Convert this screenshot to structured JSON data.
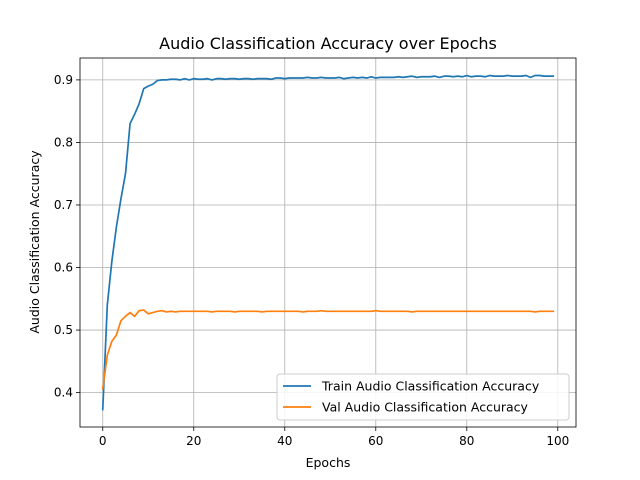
{
  "chart_data": {
    "type": "line",
    "title": "Audio Classification Accuracy over Epochs",
    "xlabel": "Epochs",
    "ylabel": "Audio Classification Accuracy",
    "xlim": [
      -5,
      104
    ],
    "ylim": [
      0.345,
      0.935
    ],
    "xticks": [
      0,
      20,
      40,
      60,
      80,
      100
    ],
    "yticks": [
      0.4,
      0.5,
      0.6,
      0.7,
      0.8,
      0.9
    ],
    "grid": true,
    "legend_position": "lower-right",
    "x": [
      0,
      1,
      2,
      3,
      4,
      5,
      6,
      7,
      8,
      9,
      10,
      11,
      12,
      13,
      14,
      15,
      16,
      17,
      18,
      19,
      20,
      21,
      22,
      23,
      24,
      25,
      26,
      27,
      28,
      29,
      30,
      31,
      32,
      33,
      34,
      35,
      36,
      37,
      38,
      39,
      40,
      41,
      42,
      43,
      44,
      45,
      46,
      47,
      48,
      49,
      50,
      51,
      52,
      53,
      54,
      55,
      56,
      57,
      58,
      59,
      60,
      61,
      62,
      63,
      64,
      65,
      66,
      67,
      68,
      69,
      70,
      71,
      72,
      73,
      74,
      75,
      76,
      77,
      78,
      79,
      80,
      81,
      82,
      83,
      84,
      85,
      86,
      87,
      88,
      89,
      90,
      91,
      92,
      93,
      94,
      95,
      96,
      97,
      98,
      99
    ],
    "series": [
      {
        "name": "Train Audio Classification Accuracy",
        "color": "#1f77b4",
        "values": [
          0.373,
          0.54,
          0.61,
          0.665,
          0.71,
          0.75,
          0.83,
          0.845,
          0.862,
          0.886,
          0.89,
          0.893,
          0.899,
          0.9,
          0.9,
          0.901,
          0.901,
          0.9,
          0.902,
          0.9,
          0.902,
          0.901,
          0.901,
          0.902,
          0.9,
          0.902,
          0.902,
          0.901,
          0.902,
          0.902,
          0.901,
          0.902,
          0.902,
          0.901,
          0.902,
          0.902,
          0.902,
          0.901,
          0.903,
          0.903,
          0.902,
          0.903,
          0.903,
          0.903,
          0.903,
          0.904,
          0.903,
          0.903,
          0.904,
          0.903,
          0.903,
          0.903,
          0.904,
          0.902,
          0.903,
          0.904,
          0.903,
          0.904,
          0.903,
          0.905,
          0.903,
          0.904,
          0.904,
          0.904,
          0.904,
          0.905,
          0.904,
          0.905,
          0.906,
          0.904,
          0.905,
          0.905,
          0.905,
          0.906,
          0.904,
          0.906,
          0.906,
          0.905,
          0.906,
          0.905,
          0.907,
          0.905,
          0.906,
          0.906,
          0.905,
          0.907,
          0.906,
          0.906,
          0.906,
          0.907,
          0.906,
          0.906,
          0.906,
          0.907,
          0.904,
          0.907,
          0.907,
          0.906,
          0.906,
          0.906
        ]
      },
      {
        "name": "Val Audio Classification Accuracy",
        "color": "#ff7f0e",
        "values": [
          0.406,
          0.46,
          0.482,
          0.492,
          0.515,
          0.522,
          0.528,
          0.522,
          0.531,
          0.532,
          0.526,
          0.528,
          0.53,
          0.531,
          0.529,
          0.53,
          0.529,
          0.53,
          0.53,
          0.53,
          0.53,
          0.53,
          0.53,
          0.53,
          0.529,
          0.53,
          0.53,
          0.53,
          0.53,
          0.529,
          0.53,
          0.53,
          0.53,
          0.53,
          0.53,
          0.529,
          0.53,
          0.53,
          0.53,
          0.53,
          0.53,
          0.53,
          0.53,
          0.53,
          0.529,
          0.53,
          0.53,
          0.53,
          0.531,
          0.53,
          0.53,
          0.53,
          0.53,
          0.53,
          0.53,
          0.53,
          0.53,
          0.53,
          0.53,
          0.53,
          0.531,
          0.53,
          0.53,
          0.53,
          0.53,
          0.53,
          0.53,
          0.53,
          0.529,
          0.53,
          0.53,
          0.53,
          0.53,
          0.53,
          0.53,
          0.53,
          0.53,
          0.53,
          0.53,
          0.53,
          0.53,
          0.53,
          0.53,
          0.53,
          0.53,
          0.53,
          0.53,
          0.53,
          0.53,
          0.53,
          0.53,
          0.53,
          0.53,
          0.53,
          0.53,
          0.529,
          0.53,
          0.53,
          0.53,
          0.53
        ]
      }
    ]
  }
}
